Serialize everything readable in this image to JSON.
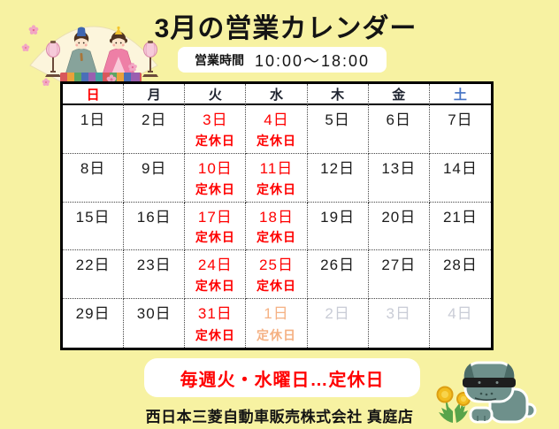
{
  "page": {
    "title": "3月の営業カレンダー",
    "hours_label": "営業時間",
    "hours_value": "10:00～18:00",
    "notice": "毎週火・水曜日…定休日",
    "company": "西日本三菱自動車販売株式会社 真庭店"
  },
  "calendar": {
    "closed_label": "定休日",
    "weekday_headers": [
      {
        "key": "sun",
        "label": "日",
        "color": "#ff0000"
      },
      {
        "key": "mon",
        "label": "月",
        "color": "#1f2430"
      },
      {
        "key": "tue",
        "label": "火",
        "color": "#1f2430"
      },
      {
        "key": "wed",
        "label": "水",
        "color": "#1f2430"
      },
      {
        "key": "thu",
        "label": "木",
        "color": "#1f2430"
      },
      {
        "key": "fri",
        "label": "金",
        "color": "#1f2430"
      },
      {
        "key": "sat",
        "label": "土",
        "color": "#4472c4"
      }
    ],
    "weeks": [
      [
        {
          "date": "1日",
          "status": "open"
        },
        {
          "date": "2日",
          "status": "open"
        },
        {
          "date": "3日",
          "status": "closed"
        },
        {
          "date": "4日",
          "status": "closed"
        },
        {
          "date": "5日",
          "status": "open"
        },
        {
          "date": "6日",
          "status": "open"
        },
        {
          "date": "7日",
          "status": "open"
        }
      ],
      [
        {
          "date": "8日",
          "status": "open"
        },
        {
          "date": "9日",
          "status": "open"
        },
        {
          "date": "10日",
          "status": "closed"
        },
        {
          "date": "11日",
          "status": "closed"
        },
        {
          "date": "12日",
          "status": "open"
        },
        {
          "date": "13日",
          "status": "open"
        },
        {
          "date": "14日",
          "status": "open"
        }
      ],
      [
        {
          "date": "15日",
          "status": "open"
        },
        {
          "date": "16日",
          "status": "open"
        },
        {
          "date": "17日",
          "status": "closed"
        },
        {
          "date": "18日",
          "status": "closed"
        },
        {
          "date": "19日",
          "status": "open"
        },
        {
          "date": "20日",
          "status": "open"
        },
        {
          "date": "21日",
          "status": "open"
        }
      ],
      [
        {
          "date": "22日",
          "status": "open"
        },
        {
          "date": "23日",
          "status": "open"
        },
        {
          "date": "24日",
          "status": "closed"
        },
        {
          "date": "25日",
          "status": "closed"
        },
        {
          "date": "26日",
          "status": "open"
        },
        {
          "date": "27日",
          "status": "open"
        },
        {
          "date": "28日",
          "status": "open"
        }
      ],
      [
        {
          "date": "29日",
          "status": "open"
        },
        {
          "date": "30日",
          "status": "open"
        },
        {
          "date": "31日",
          "status": "closed"
        },
        {
          "date": "1日",
          "status": "next_month_closed"
        },
        {
          "date": "2日",
          "status": "next_month"
        },
        {
          "date": "3日",
          "status": "next_month"
        },
        {
          "date": "4日",
          "status": "next_month"
        }
      ]
    ]
  },
  "colors": {
    "background": "#f7f2a2",
    "closed_red": "#ff0000",
    "date_dark": "#1c1c1c",
    "saturday_blue": "#4472c4",
    "next_month_gray": "#c9ccd6",
    "next_month_orange": "#f5b183",
    "notice_red": "#ff0000"
  },
  "icons": {
    "hina_dolls": "hina-dolls-decoration",
    "dog_mascot": "dog-mascot",
    "dandelion": "dandelion-flowers"
  }
}
